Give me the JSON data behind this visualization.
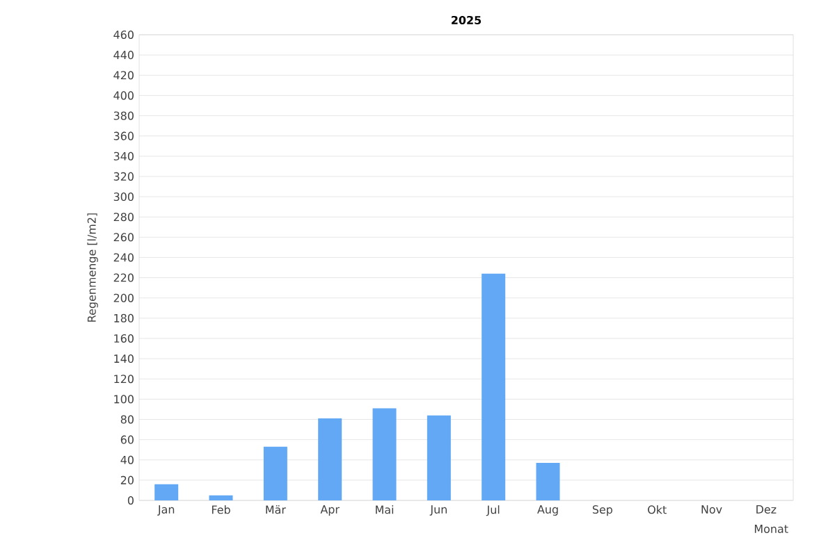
{
  "chart_data": {
    "type": "bar",
    "title": "2025",
    "xlabel": "Monat",
    "ylabel": "Regenmenge [l/m2]",
    "categories": [
      "Jan",
      "Feb",
      "Mär",
      "Apr",
      "Mai",
      "Jun",
      "Jul",
      "Aug",
      "Sep",
      "Okt",
      "Nov",
      "Dez"
    ],
    "values": [
      16,
      5,
      53,
      81,
      91,
      84,
      224,
      37,
      null,
      null,
      null,
      null
    ],
    "color": "#62a8f4",
    "ylim": [
      0,
      460
    ],
    "yticks": [
      0,
      20,
      40,
      60,
      80,
      100,
      120,
      140,
      160,
      180,
      200,
      220,
      240,
      260,
      280,
      300,
      320,
      340,
      360,
      380,
      400,
      420,
      440,
      460
    ],
    "grid": "y"
  }
}
